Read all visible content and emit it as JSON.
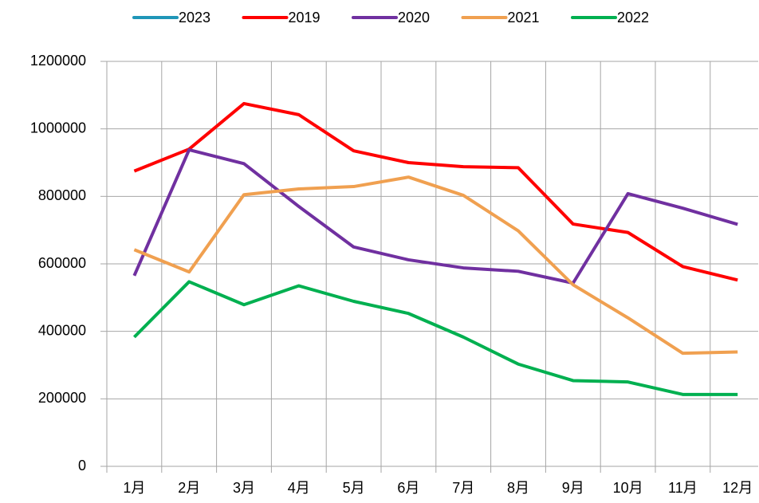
{
  "chart_data": {
    "type": "line",
    "categories": [
      "1月",
      "2月",
      "3月",
      "4月",
      "5月",
      "6月",
      "7月",
      "8月",
      "9月",
      "10月",
      "11月",
      "12月"
    ],
    "series": [
      {
        "name": "2023",
        "color": "#1f96b8",
        "values": [
          null,
          null,
          null,
          null,
          null,
          null,
          null,
          null,
          null,
          null,
          null,
          null
        ]
      },
      {
        "name": "2019",
        "color": "#ff0000",
        "values": [
          875000,
          940000,
          1075000,
          1042000,
          935000,
          900000,
          888000,
          885000,
          718000,
          693000,
          592000,
          552000
        ]
      },
      {
        "name": "2020",
        "color": "#7030a0",
        "values": [
          565000,
          938000,
          897000,
          770000,
          650000,
          612000,
          588000,
          578000,
          543000,
          808000,
          765000,
          717000
        ]
      },
      {
        "name": "2021",
        "color": "#f0a050",
        "values": [
          642000,
          576000,
          805000,
          822000,
          829000,
          857000,
          803000,
          698000,
          538000,
          440000,
          335000,
          339000
        ]
      },
      {
        "name": "2022",
        "color": "#00b050",
        "values": [
          383000,
          547000,
          479000,
          535000,
          489000,
          453000,
          383000,
          303000,
          254000,
          250000,
          213000,
          213000
        ]
      }
    ],
    "ylim": [
      0,
      1200000
    ],
    "yticks": [
      0,
      200000,
      400000,
      600000,
      800000,
      1000000,
      1200000
    ],
    "grid": true,
    "legend": "top"
  }
}
